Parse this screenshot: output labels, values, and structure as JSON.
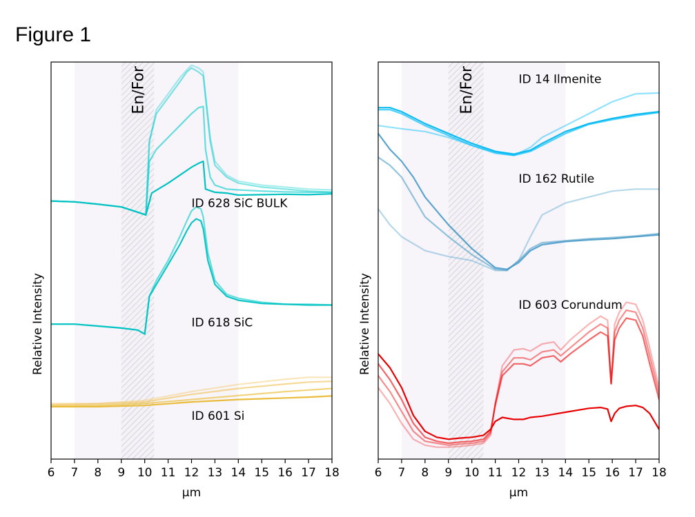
{
  "figure_title": "Figure 1",
  "chart_data": [
    {
      "type": "line",
      "xlabel": "µm",
      "ylabel": "Relative Intensity",
      "xlim": [
        6,
        18
      ],
      "ylim": [
        0,
        100
      ],
      "xticks": [
        6,
        7,
        8,
        9,
        10,
        11,
        12,
        13,
        14,
        15,
        16,
        17,
        18
      ],
      "yticks": "none",
      "grid": false,
      "legend": "none",
      "shaded_regions": [
        {
          "from": 7,
          "to": 14,
          "style": "light-tint"
        },
        {
          "from": 9,
          "to": 10.4,
          "style": "hatched",
          "label": "En/For"
        }
      ],
      "annotations": [
        {
          "text": "ID 628 SiC BULK",
          "x": 12.0,
          "y": 64.3
        },
        {
          "text": "ID 618 SiC",
          "x": 12.0,
          "y": 34.3
        },
        {
          "text": "ID 601 Si",
          "x": 12.0,
          "y": 10.8
        }
      ],
      "series": [
        {
          "color": "#00cccc",
          "opacity": 0.35,
          "x": [
            6,
            7,
            8,
            9,
            9.8,
            10.05,
            10.2,
            10.5,
            11,
            11.5,
            11.8,
            12,
            12.3,
            12.5,
            12.6,
            12.8,
            13,
            13.5,
            14,
            15,
            16,
            17,
            18
          ],
          "y": [
            65,
            64.8,
            64.2,
            63.5,
            62,
            61.5,
            80,
            88,
            92,
            96,
            98,
            99.2,
            98.5,
            97.5,
            92,
            81,
            75,
            71.5,
            70,
            69,
            68.5,
            68,
            67.8
          ]
        },
        {
          "color": "#00cccc",
          "opacity": 0.5,
          "x": [
            6,
            7,
            8,
            9,
            9.8,
            10.05,
            10.2,
            10.5,
            11,
            11.5,
            11.8,
            12,
            12.3,
            12.5,
            12.6,
            12.8,
            13,
            13.5,
            14,
            15,
            16,
            17,
            18
          ],
          "y": [
            65,
            64.8,
            64.2,
            63.5,
            62,
            61.5,
            80,
            87,
            91,
            95,
            97.5,
            98.5,
            97.5,
            96.5,
            91,
            80,
            74,
            71,
            69.5,
            68.5,
            68,
            67.5,
            67.2
          ]
        },
        {
          "color": "#00cccc",
          "opacity": 0.6,
          "x": [
            6,
            7,
            8,
            9,
            9.8,
            10.05,
            10.2,
            10.5,
            11,
            11.5,
            12,
            12.3,
            12.5,
            12.6,
            12.8,
            13,
            13.5,
            14,
            15,
            16,
            17,
            18
          ],
          "y": [
            65,
            64.8,
            64.2,
            63.5,
            62,
            61.5,
            75,
            78,
            81,
            84,
            87,
            88.5,
            88.8,
            78,
            71,
            69,
            68,
            67.8,
            67.5,
            67.3,
            67.2,
            67.2
          ]
        },
        {
          "color": "#00c2c2",
          "opacity": 1.0,
          "x": [
            6,
            7,
            8,
            9,
            9.8,
            10.05,
            10.3,
            11,
            11.5,
            12,
            12.3,
            12.5,
            12.6,
            13,
            13.5,
            14,
            15,
            16,
            17,
            18
          ],
          "y": [
            65,
            64.8,
            64.2,
            63.5,
            62,
            61.5,
            67,
            69.5,
            71.5,
            73.5,
            74.5,
            75,
            68,
            67.2,
            67,
            66.5,
            66.6,
            66.7,
            66.6,
            66.8
          ]
        },
        {
          "color": "#00cccc",
          "opacity": 0.6,
          "x": [
            6,
            7,
            8,
            9,
            9.7,
            10,
            10.2,
            10.5,
            11,
            11.5,
            11.8,
            12,
            12.2,
            12.4,
            12.5,
            12.7,
            13,
            13.5,
            14,
            15,
            16,
            17,
            18
          ],
          "y": [
            34,
            34,
            33.5,
            33,
            32.5,
            31.5,
            41,
            45,
            50,
            56,
            60,
            62.5,
            63.5,
            63,
            61,
            52,
            45,
            41.5,
            40.5,
            39.5,
            39,
            39,
            38.8
          ]
        },
        {
          "color": "#00c2c2",
          "opacity": 0.95,
          "x": [
            6,
            7,
            8,
            9,
            9.7,
            10,
            10.2,
            10.5,
            11,
            11.5,
            11.8,
            12,
            12.2,
            12.4,
            12.5,
            12.7,
            13,
            13.5,
            14,
            15,
            16,
            17,
            18
          ],
          "y": [
            34,
            34,
            33.5,
            33,
            32.5,
            31.5,
            41,
            44,
            49,
            54,
            57.5,
            59.5,
            60.5,
            60,
            58,
            50,
            44,
            41,
            40,
            39.2,
            39,
            38.8,
            38.8
          ]
        },
        {
          "color": "#f5d080",
          "opacity": 0.55,
          "x": [
            6,
            8,
            10,
            12,
            14,
            16,
            17,
            18
          ],
          "y": [
            14,
            14,
            14.8,
            17,
            18.8,
            20.1,
            20.6,
            20.6
          ]
        },
        {
          "color": "#f0c050",
          "opacity": 0.6,
          "x": [
            6,
            8,
            10,
            12,
            14,
            16,
            17,
            18
          ],
          "y": [
            13.7,
            13.9,
            14.4,
            16.3,
            17.8,
            18.9,
            19.4,
            19.6
          ]
        },
        {
          "color": "#ecc040",
          "opacity": 0.7,
          "x": [
            6,
            8,
            10,
            12,
            14,
            16,
            17,
            18
          ],
          "y": [
            13.4,
            13.5,
            14,
            15,
            16,
            17,
            17.4,
            17.8
          ]
        },
        {
          "color": "#e8b830",
          "opacity": 0.95,
          "x": [
            6,
            8,
            10,
            12,
            14,
            16,
            17,
            18
          ],
          "y": [
            13.2,
            13.2,
            13.5,
            14.4,
            15,
            15.4,
            15.6,
            15.9
          ]
        }
      ]
    },
    {
      "type": "line",
      "xlabel": "µm",
      "ylabel": "Relative Intensity",
      "xlim": [
        6,
        18
      ],
      "ylim": [
        0,
        100
      ],
      "xticks": [
        6,
        7,
        8,
        9,
        10,
        11,
        12,
        13,
        14,
        15,
        16,
        17,
        18
      ],
      "yticks": "none",
      "grid": false,
      "legend": "none",
      "shaded_regions": [
        {
          "from": 7,
          "to": 14,
          "style": "light-tint"
        },
        {
          "from": 9,
          "to": 10.5,
          "style": "hatched",
          "label": "En/For"
        }
      ],
      "annotations": [
        {
          "text": "ID 14 Ilmenite",
          "x": 12.0,
          "y": 95.6
        },
        {
          "text": "ID 162 Rutile",
          "x": 12.0,
          "y": 70.5
        },
        {
          "text": "ID 603 Corundum",
          "x": 12.0,
          "y": 38.7
        }
      ],
      "series": [
        {
          "color": "#00bfff",
          "opacity": 0.45,
          "x": [
            6,
            7,
            8,
            9,
            10,
            11,
            11.8,
            12.5,
            13,
            14,
            15,
            16,
            17,
            18
          ],
          "y": [
            84,
            83.2,
            82.5,
            81,
            79,
            77,
            76.5,
            78.5,
            81,
            84,
            87,
            90,
            92,
            92.2
          ]
        },
        {
          "color": "#00bfff",
          "opacity": 0.7,
          "x": [
            6,
            6.5,
            7,
            8,
            9,
            10,
            11,
            11.8,
            12.5,
            13,
            14,
            15,
            16,
            17,
            18
          ],
          "y": [
            88,
            88,
            87,
            84,
            81.5,
            79,
            77.2,
            76.5,
            77.5,
            79,
            82,
            84.3,
            85.5,
            86.5,
            87.3
          ]
        },
        {
          "color": "#00b7ee",
          "opacity": 0.95,
          "x": [
            6,
            6.5,
            7,
            8,
            9,
            10,
            11,
            11.8,
            12.5,
            13,
            14,
            15,
            16,
            17,
            18
          ],
          "y": [
            88.5,
            88.5,
            87.5,
            84.5,
            82,
            79.5,
            77.5,
            76.8,
            77.8,
            79.5,
            82.5,
            84.5,
            85.8,
            86.8,
            87.5
          ]
        },
        {
          "color": "#5aa8d0",
          "opacity": 0.45,
          "x": [
            6,
            6.5,
            7,
            8,
            9,
            10,
            11,
            11.5,
            12,
            12.5,
            13,
            14,
            15,
            16,
            17,
            18
          ],
          "y": [
            63,
            59,
            56,
            52.5,
            51,
            50,
            47.5,
            47.5,
            50,
            56,
            61.5,
            64.5,
            66,
            67.5,
            68,
            68
          ]
        },
        {
          "color": "#4a9cc8",
          "opacity": 0.6,
          "x": [
            6,
            6.5,
            7,
            7.5,
            8,
            9,
            10,
            11,
            11.5,
            12,
            12.5,
            13,
            14,
            15,
            16,
            17,
            18
          ],
          "y": [
            76,
            74,
            71,
            66,
            61,
            56,
            51.5,
            47.8,
            47.5,
            50,
            53,
            54.5,
            55,
            55.5,
            55.8,
            56.2,
            56.8
          ]
        },
        {
          "color": "#3f95c4",
          "opacity": 0.85,
          "x": [
            6,
            6.5,
            7,
            7.5,
            8,
            9,
            10,
            11,
            11.5,
            12,
            12.5,
            13,
            14,
            15,
            16,
            17,
            18
          ],
          "y": [
            82,
            78,
            75,
            71,
            66,
            59,
            53,
            48.2,
            47.8,
            49.5,
            52.5,
            54,
            54.8,
            55.2,
            55.5,
            56,
            56.5
          ]
        },
        {
          "color": "#ee0000",
          "opacity": 0.3,
          "x": [
            6,
            6.5,
            7,
            7.5,
            8,
            8.5,
            9,
            9.5,
            10,
            10.5,
            10.8,
            11,
            11.3,
            11.8,
            12.2,
            12.5,
            13,
            13.5,
            13.8,
            14.2,
            15,
            15.5,
            15.8,
            15.95,
            16.1,
            16.3,
            16.6,
            17,
            17.3,
            17.6,
            18
          ],
          "y": [
            18,
            14,
            9,
            5,
            3.5,
            3,
            3,
            3.2,
            3.5,
            4,
            6,
            14,
            23.5,
            27.5,
            27.8,
            27.2,
            29,
            29.5,
            27.5,
            30,
            34,
            36,
            35,
            19,
            34,
            37,
            39.5,
            39,
            35,
            28,
            18
          ]
        },
        {
          "color": "#ee0000",
          "opacity": 0.45,
          "x": [
            6,
            6.5,
            7,
            7.5,
            8,
            8.5,
            9,
            9.5,
            10,
            10.5,
            10.8,
            11,
            11.3,
            11.8,
            12.2,
            12.5,
            13,
            13.5,
            13.8,
            14.2,
            15,
            15.5,
            15.8,
            15.95,
            16.1,
            16.3,
            16.6,
            17,
            17.3,
            17.6,
            18
          ],
          "y": [
            21,
            17,
            12,
            7,
            4.5,
            4,
            3.5,
            3.8,
            4,
            4.5,
            6.5,
            14,
            22,
            25.5,
            25.5,
            25,
            27,
            27.5,
            26,
            28,
            32,
            34,
            33,
            19,
            32,
            35,
            37.5,
            37,
            33,
            26,
            16.5
          ]
        },
        {
          "color": "#ee0000",
          "opacity": 0.6,
          "x": [
            6,
            6.5,
            7,
            7.5,
            8,
            8.5,
            9,
            9.5,
            10,
            10.5,
            10.8,
            11,
            11.3,
            11.8,
            12.2,
            12.5,
            13,
            13.5,
            13.8,
            14.2,
            15,
            15.5,
            15.8,
            15.95,
            16.1,
            16.3,
            16.6,
            17,
            17.3,
            17.6,
            18
          ],
          "y": [
            24,
            20,
            15,
            9,
            5.5,
            4.5,
            4,
            4.3,
            4.5,
            5,
            7,
            13.5,
            21,
            24,
            24,
            23.5,
            25.5,
            26,
            24.5,
            26.5,
            30,
            32,
            31,
            19,
            30,
            33,
            35.5,
            35,
            31,
            24,
            15
          ]
        },
        {
          "color": "#e80000",
          "opacity": 1.0,
          "x": [
            6,
            6.5,
            7,
            7.5,
            8,
            8.5,
            9,
            9.5,
            10,
            10.5,
            10.8,
            11,
            11.3,
            11.8,
            12.2,
            12.5,
            13,
            14,
            15,
            15.5,
            15.8,
            15.95,
            16.1,
            16.3,
            16.6,
            17,
            17.3,
            17.6,
            18
          ],
          "y": [
            26.5,
            23,
            18,
            11,
            7,
            5.5,
            5,
            5.3,
            5.5,
            6,
            7.5,
            9.5,
            10.5,
            10,
            10,
            10.5,
            10.8,
            11.8,
            12.8,
            13,
            12.6,
            9.5,
            11.5,
            12.8,
            13.3,
            13.5,
            13,
            11.5,
            7.5
          ]
        }
      ]
    }
  ]
}
